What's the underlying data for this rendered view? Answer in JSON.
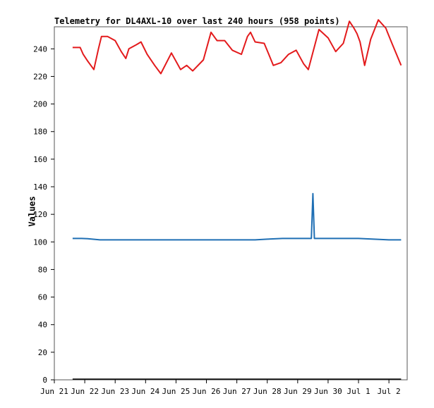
{
  "chart_data": {
    "type": "line",
    "title": "Telemetry for DL4AXL-10 over last 240 hours (958 points)",
    "ylabel": "Values",
    "xlabel": "",
    "ylim": [
      0,
      256
    ],
    "y_ticks": [
      0,
      20,
      40,
      60,
      80,
      100,
      120,
      140,
      160,
      180,
      200,
      220,
      240
    ],
    "x_ticks": [
      "Jun 21",
      "Jun 22",
      "Jun 23",
      "Jun 24",
      "Jun 25",
      "Jun 26",
      "Jun 27",
      "Jun 28",
      "Jun 29",
      "Jun 30",
      "Jul 1",
      "Jul 2"
    ],
    "x_unit": "days since Jun 21",
    "xlim": [
      0,
      11.6
    ],
    "grid": false,
    "series": [
      {
        "name": "",
        "color": "#e31a1c",
        "x": [
          0.6,
          0.85,
          0.95,
          1.1,
          1.3,
          1.45,
          1.55,
          1.75,
          2.0,
          2.2,
          2.35,
          2.45,
          2.7,
          2.85,
          3.05,
          3.3,
          3.5,
          3.85,
          4.15,
          4.35,
          4.55,
          4.9,
          5.15,
          5.35,
          5.6,
          5.85,
          6.15,
          6.35,
          6.45,
          6.6,
          6.9,
          7.05,
          7.2,
          7.45,
          7.7,
          7.95,
          8.2,
          8.35,
          8.7,
          9.0,
          9.25,
          9.5,
          9.7,
          9.85,
          9.95,
          10.05,
          10.2,
          10.4,
          10.65,
          10.9,
          10.95,
          11.1,
          11.4
        ],
        "values": [
          241,
          241,
          236,
          231,
          225,
          240,
          249,
          249,
          246,
          238,
          233,
          240,
          243,
          245,
          236,
          228,
          222,
          237,
          225,
          228,
          224,
          232,
          252,
          246,
          246,
          239,
          236,
          249,
          252,
          245,
          244,
          236,
          228,
          230,
          236,
          239,
          229,
          225,
          254,
          248,
          238,
          244,
          260,
          255,
          251,
          245,
          228,
          247,
          261,
          255,
          252,
          244,
          228
        ]
      },
      {
        "name": "",
        "color": "#1f6fb4",
        "x": [
          0.6,
          0.9,
          1.1,
          1.5,
          2.0,
          3.0,
          4.0,
          5.0,
          6.0,
          6.6,
          7.0,
          7.5,
          8.0,
          8.45,
          8.5,
          8.55,
          8.6,
          9.0,
          9.5,
          10.0,
          10.5,
          11.0,
          11.4
        ],
        "values": [
          102.5,
          102.5,
          102.3,
          101.5,
          101.5,
          101.5,
          101.5,
          101.5,
          101.5,
          101.5,
          102.0,
          102.5,
          102.5,
          102.5,
          135,
          102.5,
          102.5,
          102.5,
          102.5,
          102.5,
          102.0,
          101.5,
          101.5
        ]
      },
      {
        "name": "",
        "color": "#000000",
        "x": [
          0.6,
          11.4
        ],
        "values": [
          0.5,
          0.5
        ]
      }
    ]
  }
}
